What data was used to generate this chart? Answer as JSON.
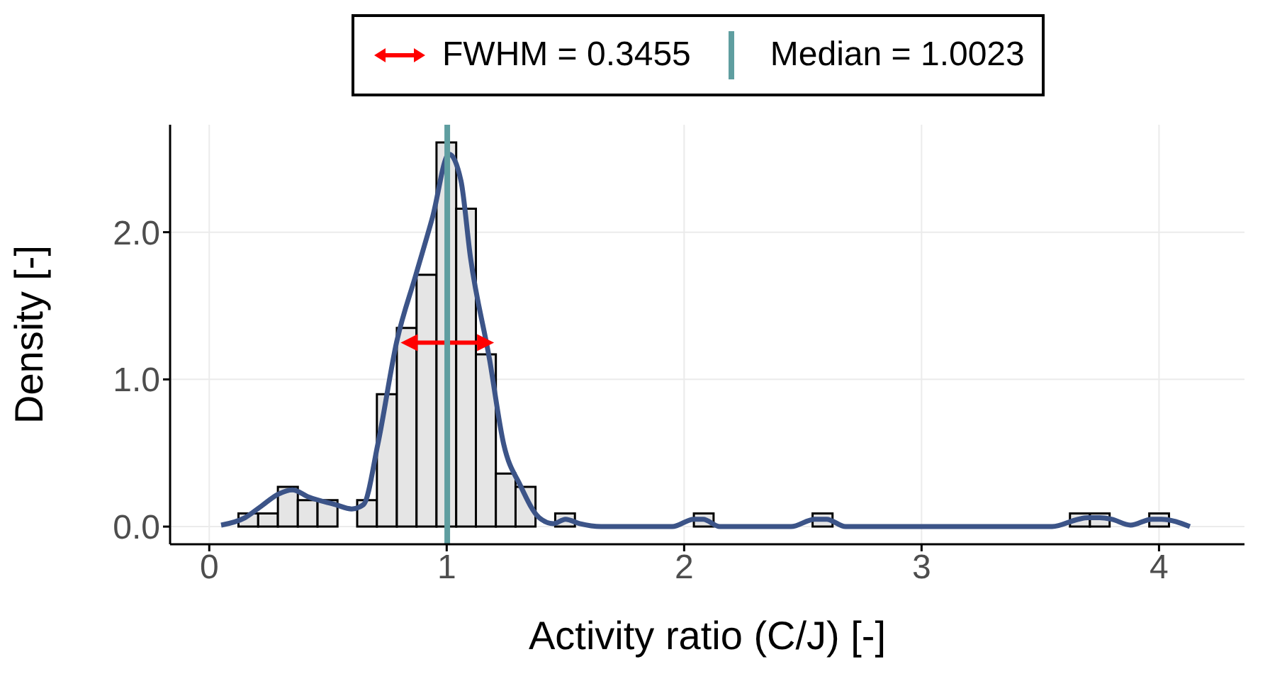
{
  "chart_data": {
    "type": "histogram",
    "xlabel": "Activity ratio (C/J) [-]",
    "ylabel": "Density [-]",
    "bins": [
      0.123,
      0.206,
      0.289,
      0.373,
      0.456,
      0.54,
      0.623,
      0.706,
      0.79,
      0.873,
      0.957,
      1.04,
      1.123,
      1.207,
      1.29,
      1.374,
      1.457,
      1.54,
      1.624,
      1.707,
      1.791,
      1.874,
      1.957,
      2.041,
      2.124,
      2.208,
      2.291,
      2.374,
      2.458,
      2.541,
      2.625,
      2.708,
      2.791,
      2.875,
      2.958,
      3.042,
      3.125,
      3.208,
      3.292,
      3.375,
      3.459,
      3.542,
      3.625,
      3.709,
      3.792,
      3.876,
      3.959,
      4.042
    ],
    "values": [
      0.09,
      0.09,
      0.27,
      0.18,
      0.18,
      0,
      0.18,
      0.9,
      1.35,
      1.71,
      2.61,
      2.16,
      1.17,
      0.36,
      0.27,
      0,
      0.09,
      0,
      0,
      0,
      0,
      0,
      0,
      0.09,
      0,
      0,
      0,
      0,
      0,
      0.09,
      0,
      0,
      0,
      0,
      0,
      0,
      0,
      0,
      0,
      0,
      0,
      0,
      0.09,
      0.09,
      0,
      0,
      0.09
    ],
    "color": "#e5e5e5",
    "series": [
      {
        "type": "line",
        "color": "#3c5488",
        "x": [
          0.05,
          0.15,
          0.22,
          0.29,
          0.35,
          0.42,
          0.53,
          0.6,
          0.65,
          0.71,
          0.79,
          0.87,
          0.94,
          1.01,
          1.06,
          1.1,
          1.18,
          1.24,
          1.31,
          1.39,
          1.45,
          1.5,
          1.56,
          1.65,
          1.95,
          2.04,
          2.08,
          2.15,
          2.45,
          2.55,
          2.6,
          2.68,
          3.55,
          3.66,
          3.7,
          3.75,
          3.8,
          3.88,
          3.97,
          4.01,
          4.13
        ],
        "values": [
          0.01,
          0.06,
          0.14,
          0.22,
          0.25,
          0.2,
          0.15,
          0.12,
          0.15,
          0.56,
          1.26,
          1.71,
          2.1,
          2.53,
          2.35,
          1.83,
          1.14,
          0.56,
          0.28,
          0.06,
          0.02,
          0.05,
          0.02,
          0,
          0,
          0.05,
          0.05,
          0,
          0,
          0.05,
          0.05,
          0,
          0,
          0.05,
          0.06,
          0.06,
          0.05,
          0.01,
          0.05,
          0.05,
          0
        ]
      },
      {
        "type": "line",
        "name": "FWHM = 0.3455",
        "color": "#ff0000",
        "marker": "triangle",
        "x": [
          0.83,
          1.1755
        ],
        "values": [
          1.25,
          1.25
        ]
      }
    ],
    "ref_lines": [
      {
        "axis": "x",
        "value": 1.0023,
        "label": "Median = 1.0023",
        "color": "#5f9ea0"
      }
    ],
    "xlim": [
      -0.165,
      4.36
    ],
    "xticks": [
      0,
      1,
      2,
      3,
      4
    ],
    "ylim": [
      -0.12,
      2.73
    ],
    "yticks": [
      {
        "value": 0,
        "label": "0.0"
      },
      {
        "value": 1,
        "label": "1.0"
      },
      {
        "value": 2,
        "label": "2.0"
      }
    ],
    "grid": true,
    "legend": "top"
  }
}
